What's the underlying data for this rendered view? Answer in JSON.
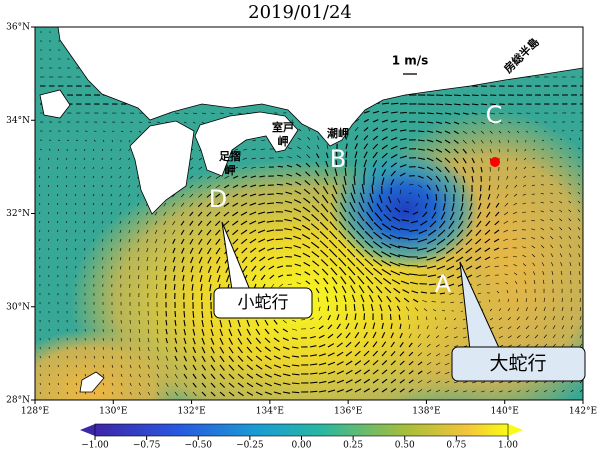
{
  "title": "2019/01/24",
  "map": {
    "lon_ticks": [
      {
        "value": 128,
        "label": "128°E"
      },
      {
        "value": 130,
        "label": "130°E"
      },
      {
        "value": 132,
        "label": "132°E"
      },
      {
        "value": 134,
        "label": "134°E"
      },
      {
        "value": 136,
        "label": "136°E"
      },
      {
        "value": 138,
        "label": "138°E"
      },
      {
        "value": 140,
        "label": "140°E"
      },
      {
        "value": 142,
        "label": "142°E"
      }
    ],
    "lat_ticks": [
      {
        "value": 28,
        "label": "28°N"
      },
      {
        "value": 30,
        "label": "30°N"
      },
      {
        "value": 32,
        "label": "32°N"
      },
      {
        "value": 34,
        "label": "34°N"
      },
      {
        "value": 36,
        "label": "36°N"
      }
    ],
    "lonlim": [
      128,
      142
    ],
    "latlim": [
      28,
      36
    ],
    "scale_label": "1 m/s",
    "points": [
      {
        "label": "A"
      },
      {
        "label": "B"
      },
      {
        "label": "C"
      },
      {
        "label": "D"
      }
    ],
    "places": [
      [
        "室戸",
        "岬"
      ],
      [
        "潮岬"
      ],
      [
        "足摺",
        "岬"
      ],
      [
        "房総半島"
      ]
    ],
    "callouts": [
      "小蛇行",
      "大蛇行"
    ]
  },
  "colorbar": {
    "range": [
      -1,
      1
    ],
    "ticks": [
      {
        "value": -1,
        "label": "−1.00"
      },
      {
        "value": -0.75,
        "label": "−0.75"
      },
      {
        "value": -0.5,
        "label": "−0.50"
      },
      {
        "value": -0.25,
        "label": "−0.25"
      },
      {
        "value": 0,
        "label": "0.00"
      },
      {
        "value": 0.25,
        "label": "0.25"
      },
      {
        "value": 0.5,
        "label": "0.50"
      },
      {
        "value": 0.75,
        "label": "0.75"
      },
      {
        "value": 1,
        "label": "1.00"
      }
    ]
  }
}
